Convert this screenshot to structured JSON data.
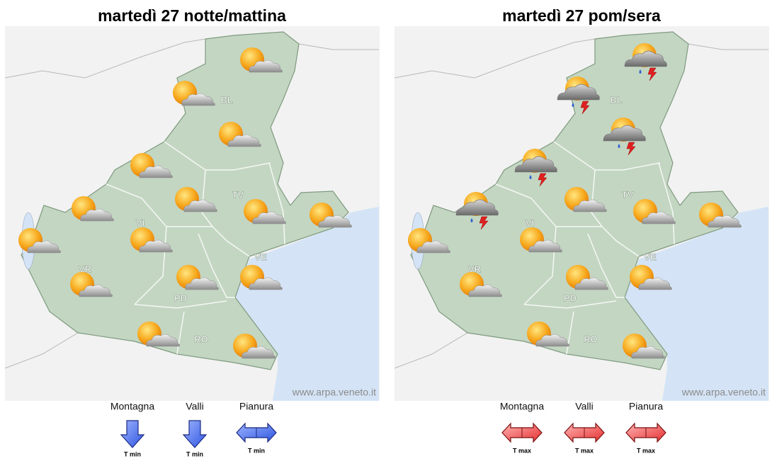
{
  "panels": [
    {
      "title": "martedì 27 notte/mattina",
      "provinces": [
        "BL",
        "TV",
        "VI",
        "VR",
        "PD",
        "VE",
        "RO"
      ],
      "watermark": "www.arpa.veneto.it",
      "trends": [
        {
          "zone": "Montagna",
          "label": "T min"
        },
        {
          "zone": "Valli",
          "label": "T min"
        },
        {
          "zone": "Pianura",
          "label": "T min"
        }
      ]
    },
    {
      "title": "martedì 27 pom/sera",
      "provinces": [
        "BL",
        "TV",
        "VI",
        "VR",
        "PD",
        "VE",
        "RO"
      ],
      "watermark": "www.arpa.veneto.it",
      "trends": [
        {
          "zone": "Montagna",
          "label": "T max"
        },
        {
          "zone": "Valli",
          "label": "T max"
        },
        {
          "zone": "Pianura",
          "label": "T max"
        }
      ]
    }
  ]
}
